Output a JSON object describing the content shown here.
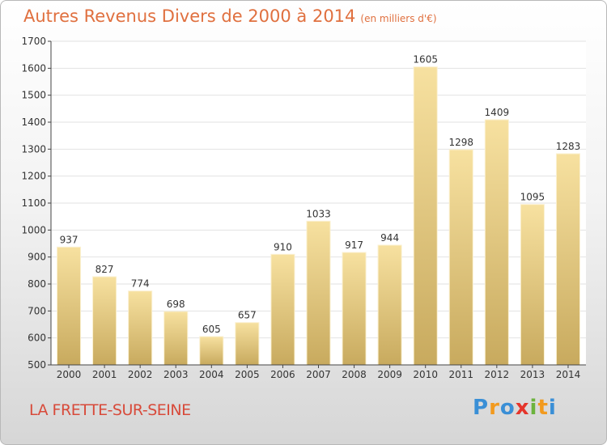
{
  "title": "Autres Revenus Divers de 2000 à 2014",
  "subtitle": "(en milliers d'€)",
  "location": "LA FRETTE-SUR-SEINE",
  "logo": {
    "letters": [
      "P",
      "r",
      "o",
      "x",
      "i",
      "t",
      "i"
    ],
    "colors": [
      "#3a8fd6",
      "#f29a1e",
      "#3a8fd6",
      "#e5352b",
      "#6cb33e",
      "#f29a1e",
      "#3a8fd6"
    ]
  },
  "colors": {
    "bar_light": "#f7e1a0",
    "bar_dark": "#c8aa5e",
    "title": "#e0703f",
    "location": "#d84a3a",
    "axis": "#444444",
    "grid": "#e2e2e2"
  },
  "chart_data": {
    "type": "bar",
    "title": "Autres Revenus Divers de 2000 à 2014",
    "subtitle": "(en milliers d'€)",
    "categories": [
      "2000",
      "2001",
      "2002",
      "2003",
      "2004",
      "2005",
      "2006",
      "2007",
      "2008",
      "2009",
      "2010",
      "2011",
      "2012",
      "2013",
      "2014"
    ],
    "values": [
      937,
      827,
      774,
      698,
      605,
      657,
      910,
      1033,
      917,
      944,
      1605,
      1298,
      1409,
      1095,
      1283
    ],
    "value_labels": [
      "937",
      "827",
      "774",
      "698",
      "605",
      "657",
      "910",
      "1033",
      "917",
      "944",
      "1605",
      "1298",
      "1409",
      "1095",
      "1283"
    ],
    "ylim": [
      500,
      1700
    ],
    "yticks": [
      "500",
      "600",
      "700",
      "800",
      "900",
      "1000",
      "1100",
      "1200",
      "1300",
      "1400",
      "1500",
      "1600",
      "1700"
    ],
    "ytick_values": [
      500,
      600,
      700,
      800,
      900,
      1000,
      1100,
      1200,
      1300,
      1400,
      1500,
      1600,
      1700
    ],
    "grid": true,
    "xlabel": "",
    "ylabel": ""
  }
}
